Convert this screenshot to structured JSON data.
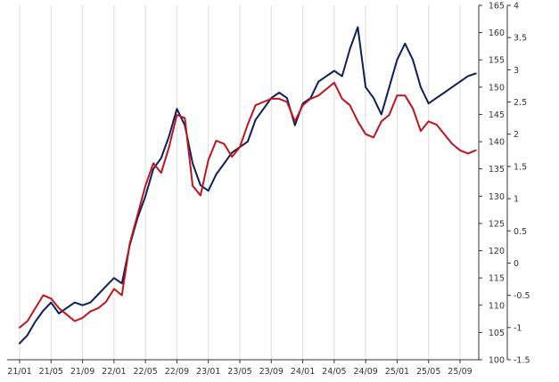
{
  "chart_data": {
    "type": "line",
    "title": "",
    "xlabel": "",
    "ylabel_left": "",
    "ylabel_right": "",
    "x_tick_labels": [
      "21/01",
      "21/05",
      "21/09",
      "22/01",
      "22/05",
      "22/09",
      "23/01",
      "23/05",
      "23/09",
      "24/01",
      "24/05",
      "24/09",
      "25/01",
      "25/05",
      "25/09"
    ],
    "y_left": {
      "ticks": [
        100,
        105,
        110,
        115,
        120,
        125,
        130,
        135,
        140,
        145,
        150,
        155,
        160,
        165
      ],
      "range": [
        100,
        165
      ]
    },
    "y_right": {
      "ticks": [
        -1.5,
        -1,
        -0.5,
        0,
        0.5,
        1,
        1.5,
        2,
        2.5,
        3,
        3.5,
        4
      ],
      "range": [
        -1.5,
        4
      ]
    },
    "grid_vertical": true,
    "series": [
      {
        "axis": "left",
        "color": "#0d1f5c",
        "x": [
          "21/01",
          "21/02",
          "21/03",
          "21/04",
          "21/05",
          "21/06",
          "21/07",
          "21/08",
          "21/09",
          "21/10",
          "21/11",
          "21/12",
          "22/01",
          "22/02",
          "22/03",
          "22/04",
          "22/05",
          "22/06",
          "22/07",
          "22/08",
          "22/09",
          "22/10",
          "22/11",
          "22/12",
          "23/01",
          "23/02",
          "23/03",
          "23/04",
          "23/05",
          "23/06",
          "23/07",
          "23/08",
          "23/09",
          "23/10",
          "23/11",
          "23/12",
          "24/01",
          "24/02",
          "24/03",
          "24/04",
          "24/05",
          "24/06",
          "24/07",
          "24/08",
          "24/09",
          "24/10",
          "24/11",
          "24/12",
          "25/01",
          "25/02",
          "25/03",
          "25/04",
          "25/05",
          "25/06",
          "25/07",
          "25/08",
          "25/09",
          "25/10",
          "25/11"
        ],
        "values": [
          103,
          104.5,
          107,
          109,
          110.5,
          108.5,
          109.5,
          110.5,
          110,
          110.5,
          112,
          113.5,
          115,
          114,
          121,
          126,
          130,
          135,
          137,
          141,
          146,
          143,
          136,
          132,
          131,
          134,
          136,
          138,
          139,
          140,
          144,
          146,
          148,
          149,
          148,
          143,
          147,
          148,
          151,
          152,
          153,
          152,
          157,
          161,
          150,
          148,
          145,
          150,
          155,
          158,
          155,
          150,
          147,
          148,
          149,
          150,
          151,
          152,
          152.5
        ]
      },
      {
        "axis": "right",
        "color": "#c0141c",
        "x": [
          "21/01",
          "21/02",
          "21/03",
          "21/04",
          "21/05",
          "21/06",
          "21/07",
          "21/08",
          "21/09",
          "21/10",
          "21/11",
          "21/12",
          "22/01",
          "22/02",
          "22/03",
          "22/04",
          "22/05",
          "22/06",
          "22/07",
          "22/08",
          "22/09",
          "22/10",
          "22/11",
          "22/12",
          "23/01",
          "23/02",
          "23/03",
          "23/04",
          "23/05",
          "23/06",
          "23/07",
          "23/08",
          "23/09",
          "23/10",
          "23/11",
          "23/12",
          "24/01",
          "24/02",
          "24/03",
          "24/04",
          "24/05",
          "24/06",
          "24/07",
          "24/08",
          "24/09",
          "24/10",
          "24/11",
          "24/12",
          "25/01",
          "25/02",
          "25/03",
          "25/04",
          "25/05",
          "25/06",
          "25/07",
          "25/08",
          "25/09",
          "25/10",
          "25/11"
        ],
        "values": [
          -1.0,
          -0.9,
          -0.7,
          -0.5,
          -0.55,
          -0.7,
          -0.8,
          -0.9,
          -0.85,
          -0.75,
          -0.7,
          -0.6,
          -0.4,
          -0.5,
          0.3,
          0.75,
          1.2,
          1.55,
          1.4,
          1.8,
          2.3,
          2.25,
          1.2,
          1.05,
          1.6,
          1.9,
          1.85,
          1.65,
          1.8,
          2.15,
          2.45,
          2.5,
          2.55,
          2.55,
          2.5,
          2.2,
          2.45,
          2.55,
          2.6,
          2.7,
          2.8,
          2.55,
          2.45,
          2.2,
          2.0,
          1.95,
          2.2,
          2.3,
          2.6,
          2.6,
          2.4,
          2.05,
          2.2,
          2.15,
          2.0,
          1.85,
          1.75,
          1.7,
          1.75
        ]
      }
    ]
  }
}
